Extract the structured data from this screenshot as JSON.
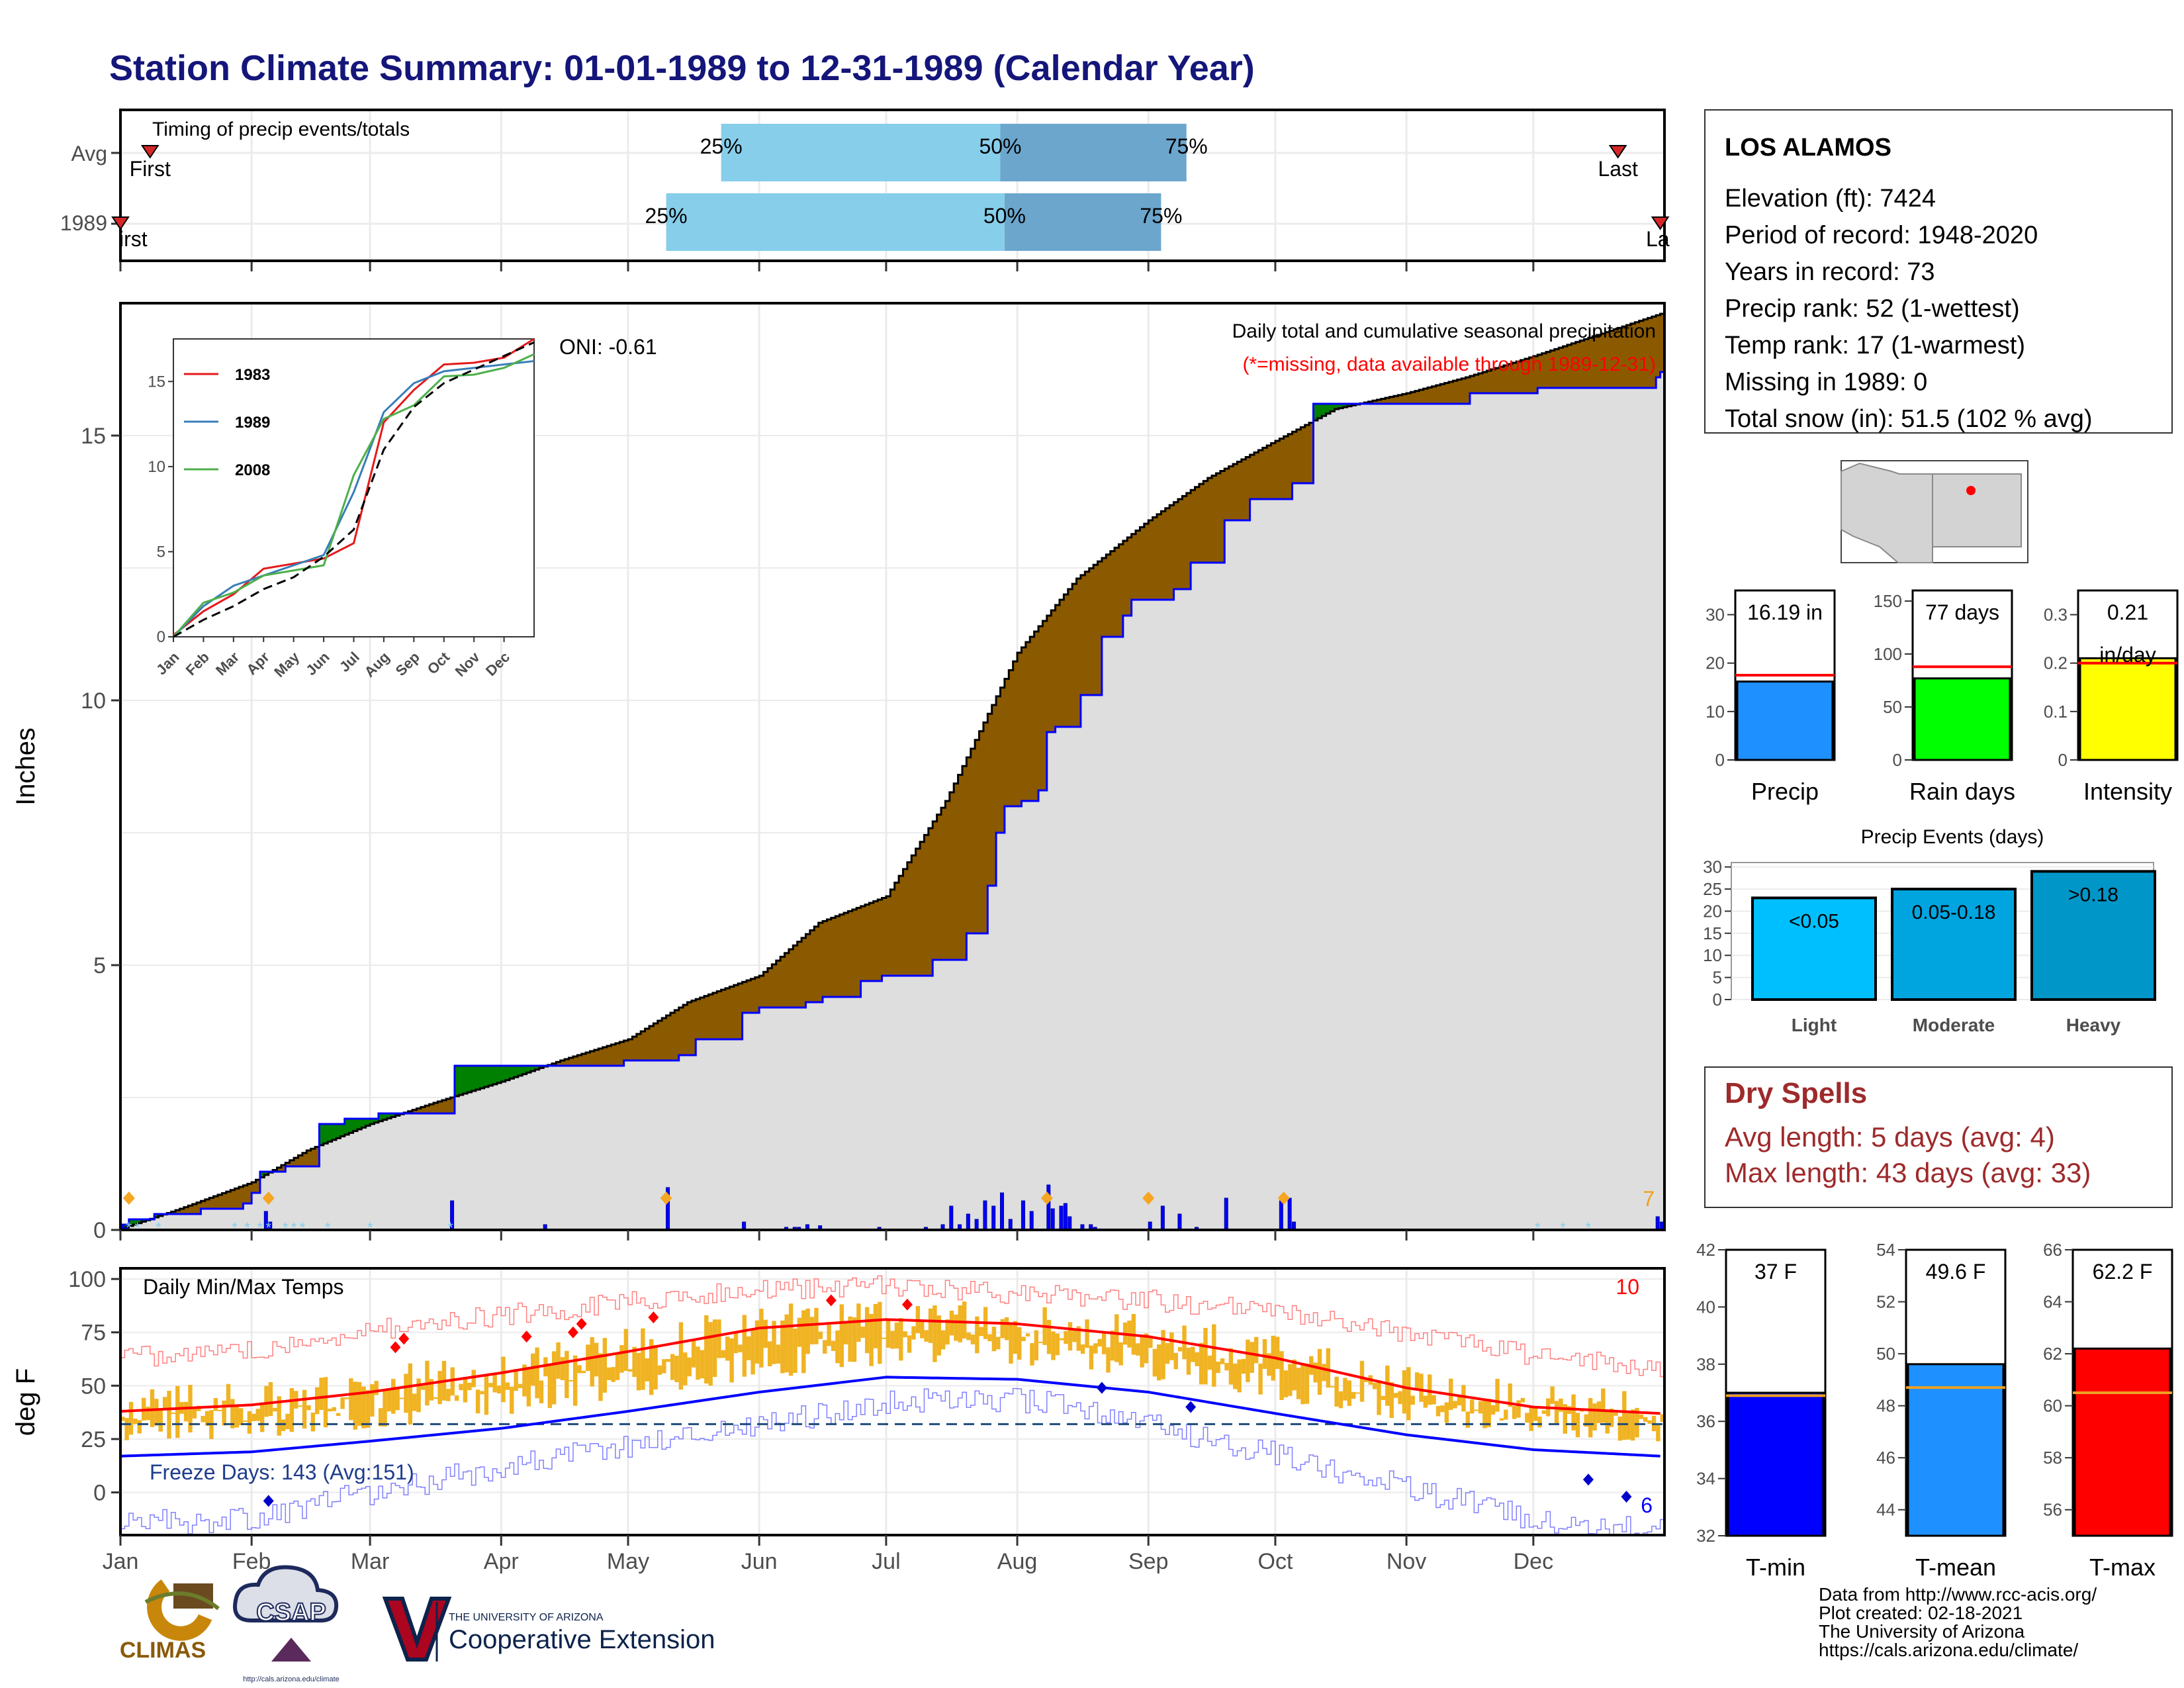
{
  "page": {
    "title": "Station Climate Summary: 01-01-1989 to 12-31-1989 (Calendar Year)",
    "footer": {
      "lines": [
        "Data from http://www.rcc-acis.org/",
        "Plot created: 02-18-2021",
        "The University of Arizona",
        "https://cals.arizona.edu/climate/"
      ]
    },
    "logos": {
      "climas": "CLIMAS",
      "csap": "CSAP",
      "csap_url": "http://cals.arizona.edu/climate",
      "ua_small": "THE UNIVERSITY OF ARIZONA",
      "ua_big": "Cooperative Extension"
    }
  },
  "station": {
    "name": "LOS ALAMOS",
    "lines": [
      "Elevation (ft): 7424",
      "Period of record: 1948-2020",
      "Years in record: 73",
      "Precip rank: 52 (1-wettest)",
      "Temp rank: 17 (1-warmest)",
      "Missing in 1989: 0",
      "Total snow (in): 51.5 (102 % avg)"
    ]
  },
  "dry_spells": {
    "title": "Dry Spells",
    "avg_line": "Avg length: 5 days (avg: 4)",
    "max_line": "Max length: 43 days (avg: 33)",
    "color": "#9e2a2b"
  },
  "colors": {
    "title": "#14167a",
    "light_blue": "#87ceeb",
    "mid_blue": "#6ca6cd",
    "brown": "#8b5a00",
    "green": "#008000",
    "gray_fill": "#dedede",
    "bar_blue": "#0000ff",
    "orange": "#f0b323",
    "red": "#ff0000",
    "precip": "#1e90ff",
    "rain": "#00ff00",
    "intensity": "#ffff00",
    "light": "#00bfff",
    "moderate": "#00a5e0",
    "heavy": "#0096c8"
  },
  "chart_data": [
    {
      "id": "timing",
      "type": "bar",
      "title": "Timing of precip events/totals",
      "rows": [
        "Avg",
        "1989"
      ],
      "first_label": "First",
      "last_label": "Last",
      "first_day": [
        8,
        1
      ],
      "last_day": [
        355,
        365
      ],
      "quartiles": [
        {
          "row": "Avg",
          "p25": 143,
          "p50": 209,
          "p75": 253
        },
        {
          "row": "1989",
          "p25": 130,
          "p50": 210,
          "p75": 247
        }
      ],
      "quartile_labels": [
        "25%",
        "50%",
        "75%"
      ]
    },
    {
      "id": "cumulative-precip",
      "type": "area",
      "title": "Daily total and cumulative seasonal precipitation",
      "subtitle": "(*=missing, data available through 1989-12-31)",
      "ylabel": "Inches",
      "oni": "ONI: -0.61",
      "ylim": [
        0,
        17.5
      ],
      "yticks": [
        0,
        5,
        10,
        15
      ],
      "months": [
        "Jan",
        "Feb",
        "Mar",
        "Apr",
        "May",
        "Jun",
        "Jul",
        "Aug",
        "Sep",
        "Oct",
        "Nov",
        "Dec"
      ],
      "corner_count": "7",
      "avg_cumulative": {
        "day": [
          1,
          15,
          32,
          45,
          60,
          75,
          91,
          105,
          121,
          135,
          152,
          166,
          182,
          196,
          213,
          227,
          244,
          258,
          274,
          288,
          305,
          319,
          335,
          350,
          365
        ],
        "value": [
          0.02,
          0.4,
          0.9,
          1.5,
          2.0,
          2.4,
          2.8,
          3.2,
          3.6,
          4.3,
          4.8,
          5.8,
          6.3,
          8.1,
          10.9,
          12.3,
          13.4,
          14.2,
          14.9,
          15.5,
          15.8,
          16.1,
          16.5,
          16.9,
          17.3
        ]
      },
      "year_cumulative": {
        "day": [
          1,
          3,
          9,
          20,
          27,
          30,
          32,
          34,
          40,
          48,
          54,
          62,
          68,
          80,
          88,
          102,
          111,
          120,
          133,
          137,
          148,
          152,
          158,
          163,
          167,
          176,
          181,
          185,
          193,
          201,
          206,
          208,
          210,
          214,
          218,
          220,
          222,
          224,
          228,
          233,
          238,
          240,
          243,
          246,
          250,
          254,
          262,
          268,
          278,
          283,
          290,
          300,
          310,
          320,
          330,
          336,
          340,
          352,
          362,
          364,
          365
        ],
        "value": [
          0.1,
          0.2,
          0.3,
          0.4,
          0.4,
          0.5,
          0.7,
          1.1,
          1.2,
          2.0,
          2.1,
          2.2,
          2.2,
          3.1,
          3.1,
          3.1,
          3.1,
          3.2,
          3.3,
          3.6,
          4.1,
          4.2,
          4.2,
          4.3,
          4.4,
          4.7,
          4.8,
          4.8,
          5.1,
          5.6,
          6.5,
          7.5,
          8.0,
          8.1,
          8.3,
          9.4,
          9.5,
          9.5,
          10.1,
          11.2,
          11.6,
          11.9,
          11.9,
          11.9,
          12.1,
          12.6,
          13.4,
          13.8,
          14.1,
          15.6,
          15.6,
          15.6,
          15.6,
          15.8,
          15.8,
          15.9,
          15.9,
          15.9,
          15.9,
          16.1,
          16.2
        ]
      },
      "daily_bars": {
        "day": [
          1,
          2,
          35,
          36,
          79,
          101,
          130,
          148,
          158,
          160,
          161,
          163,
          166,
          180,
          191,
          195,
          197,
          199,
          201,
          203,
          205,
          207,
          209,
          211,
          214,
          216,
          220,
          221,
          223,
          224,
          225,
          228,
          230,
          231,
          244,
          247,
          251,
          255,
          262,
          275,
          277,
          278,
          364,
          365
        ],
        "value": [
          0.1,
          0.05,
          0.35,
          0.15,
          0.55,
          0.1,
          0.8,
          0.15,
          0.05,
          0.05,
          0.05,
          0.1,
          0.08,
          0.05,
          0.05,
          0.1,
          0.45,
          0.1,
          0.3,
          0.2,
          0.55,
          0.45,
          0.7,
          0.2,
          0.55,
          0.35,
          0.85,
          0.4,
          0.45,
          0.5,
          0.25,
          0.1,
          0.1,
          0.05,
          0.15,
          0.45,
          0.3,
          0.05,
          0.6,
          0.55,
          0.6,
          0.15,
          0.25,
          0.15
        ]
      },
      "orange_diamonds": [
        3,
        36,
        130,
        220,
        244,
        276
      ],
      "snow_days": [
        3,
        5,
        10,
        28,
        31,
        34,
        36,
        40,
        42,
        44,
        50,
        60,
        79,
        336,
        342,
        348
      ]
    },
    {
      "id": "inset-cumulative",
      "type": "line",
      "xticks": [
        "Jan",
        "Feb",
        "Mar",
        "Apr",
        "May",
        "Jun",
        "Jul",
        "Aug",
        "Sep",
        "Oct",
        "Nov",
        "Dec"
      ],
      "yticks": [
        0,
        5,
        10,
        15
      ],
      "ylim": [
        0,
        17.5
      ],
      "series": [
        {
          "name": "1983",
          "color": "#e41a1c",
          "value": [
            0.1,
            1.5,
            2.5,
            4.0,
            4.3,
            4.6,
            5.5,
            12.6,
            14.5,
            16.0,
            16.1,
            16.4,
            17.5
          ]
        },
        {
          "name": "1989",
          "color": "#377eb8",
          "value": [
            0.0,
            1.8,
            3.0,
            3.6,
            4.2,
            4.8,
            8.5,
            13.2,
            14.9,
            15.6,
            15.8,
            16.0,
            16.2
          ]
        },
        {
          "name": "2008",
          "color": "#4daf4a",
          "value": [
            0.0,
            2.0,
            2.6,
            3.6,
            3.9,
            4.2,
            9.5,
            12.8,
            13.6,
            15.3,
            15.4,
            15.8,
            16.6
          ]
        },
        {
          "name": "",
          "color": "#000000",
          "value": [
            0.0,
            1.0,
            1.8,
            2.8,
            3.5,
            4.7,
            6.3,
            11.0,
            13.5,
            14.9,
            15.7,
            16.5,
            17.3
          ]
        }
      ]
    },
    {
      "id": "summary-precip",
      "type": "bar",
      "categories": [
        "Precip",
        "Rain days",
        "Intensity"
      ],
      "values": [
        16.19,
        77,
        0.21
      ],
      "averages": [
        17.5,
        88,
        0.2
      ],
      "labels": [
        "16.19 in",
        "77 days",
        "0.21",
        "in/day"
      ],
      "ylims": [
        [
          0,
          35
        ],
        [
          0,
          160
        ],
        [
          0,
          0.35
        ]
      ],
      "yticks": [
        [
          0,
          10,
          20,
          30
        ],
        [
          0,
          50,
          100,
          150
        ],
        [
          0.0,
          0.1,
          0.2,
          0.3
        ]
      ]
    },
    {
      "id": "precip-events",
      "type": "bar",
      "title": "Precip Events (days)",
      "categories": [
        "Light",
        "Moderate",
        "Heavy"
      ],
      "values": [
        23,
        25,
        29
      ],
      "labels": [
        "<0.05",
        "0.05-0.18",
        ">0.18"
      ],
      "ylim": [
        0,
        31
      ],
      "yticks": [
        0,
        5,
        10,
        15,
        20,
        25,
        30
      ]
    },
    {
      "id": "daily-temps",
      "type": "line",
      "title": "Daily Min/Max Temps",
      "ylabel": "deg F",
      "ylim": [
        -20,
        105
      ],
      "yticks": [
        0,
        25,
        50,
        75,
        100
      ],
      "freeze_label": "Freeze Days: 143 (Avg:151)",
      "freeze_line": 32,
      "corner_max_count": "10",
      "corner_min_count": "6",
      "months": [
        "Jan",
        "Feb",
        "Mar",
        "Apr",
        "May",
        "Jun",
        "Jul",
        "Aug",
        "Sep",
        "Oct",
        "Nov",
        "Dec"
      ],
      "avg_max": {
        "day": [
          1,
          32,
          60,
          91,
          121,
          152,
          182,
          213,
          244,
          274,
          305,
          335,
          365
        ],
        "value": [
          38,
          41,
          47,
          56,
          66,
          77,
          81,
          79,
          73,
          63,
          49,
          40,
          37
        ]
      },
      "avg_min": {
        "day": [
          1,
          32,
          60,
          91,
          121,
          152,
          182,
          213,
          244,
          274,
          305,
          335,
          365
        ],
        "value": [
          17,
          19,
          24,
          30,
          38,
          47,
          54,
          53,
          47,
          37,
          27,
          20,
          17
        ]
      },
      "record_max": {
        "day": [
          1,
          32,
          60,
          91,
          121,
          152,
          182,
          213,
          244,
          274,
          305,
          335,
          365
        ],
        "value": [
          63,
          67,
          76,
          83,
          89,
          95,
          97,
          93,
          90,
          85,
          74,
          64,
          58
        ]
      },
      "record_min": {
        "day": [
          1,
          32,
          60,
          91,
          121,
          152,
          182,
          213,
          244,
          274,
          305,
          335,
          365
        ],
        "value": [
          -15,
          -12,
          0,
          12,
          22,
          32,
          42,
          44,
          32,
          18,
          2,
          -12,
          -18
        ]
      },
      "red_diamonds": [
        {
          "day": 66,
          "value": 68
        },
        {
          "day": 68,
          "value": 72
        },
        {
          "day": 97,
          "value": 73
        },
        {
          "day": 108,
          "value": 75
        },
        {
          "day": 110,
          "value": 79
        },
        {
          "day": 127,
          "value": 82
        },
        {
          "day": 169,
          "value": 90
        },
        {
          "day": 187,
          "value": 88
        }
      ],
      "blue_diamonds": [
        {
          "day": 36,
          "value": -4
        },
        {
          "day": 233,
          "value": 49
        },
        {
          "day": 254,
          "value": 40
        },
        {
          "day": 348,
          "value": 6
        },
        {
          "day": 357,
          "value": -2
        }
      ]
    },
    {
      "id": "summary-temps",
      "type": "bar",
      "categories": [
        "T-min",
        "T-mean",
        "T-max"
      ],
      "values": [
        37,
        49.6,
        62.2
      ],
      "averages": [
        36.9,
        48.7,
        60.5
      ],
      "labels": [
        "37 F",
        "49.6 F",
        "62.2 F"
      ],
      "ylims": [
        [
          32,
          42
        ],
        [
          43,
          54
        ],
        [
          55,
          66
        ]
      ],
      "yticks": [
        [
          32,
          34,
          36,
          38,
          40,
          42
        ],
        [
          44,
          46,
          48,
          50,
          52,
          54
        ],
        [
          56,
          58,
          60,
          62,
          64,
          66
        ]
      ]
    }
  ]
}
